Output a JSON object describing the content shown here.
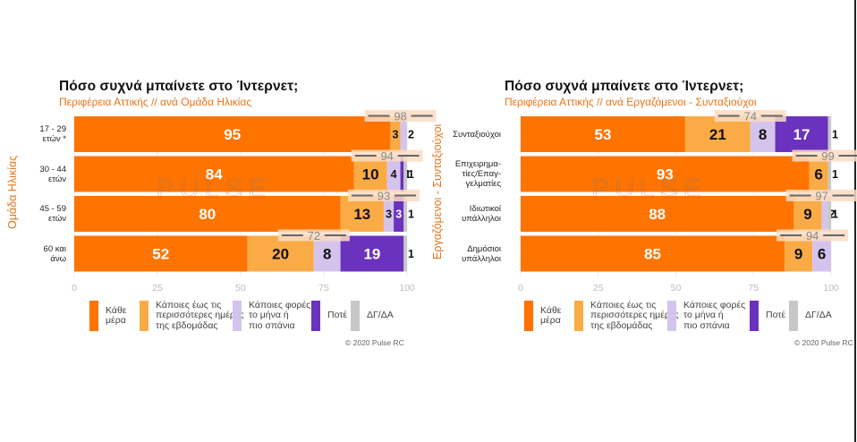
{
  "colors": {
    "every_day": "#ff7300",
    "most_days": "#fbab46",
    "monthly_or_rarer": "#d4c4ed",
    "never": "#6b32be",
    "dk_na": "#c8c8c8",
    "accent_text": "#e8731a"
  },
  "chart_data": [
    {
      "type": "bar",
      "orientation": "horizontal",
      "stacked": true,
      "title": "Πόσο συχνά μπαίνετε στο Ίντερνετ;",
      "subtitle": "Περιφέρεια Αττικής // ανά Ομάδα Ηλικίας",
      "xlabel": "",
      "ylabel": "Ομάδα Ηλικίας",
      "xlim": [
        0,
        100
      ],
      "xticks": [
        "0",
        "25",
        "50",
        "75",
        "100"
      ],
      "categories": [
        "17 - 29 ετών *",
        "30 - 44 ετών",
        "45 - 59 ετών",
        "60 και άνω"
      ],
      "series": [
        {
          "name": "Κάθε μέρα",
          "values": [
            95,
            84,
            80,
            52
          ]
        },
        {
          "name": "Κάποιες έως τις περισσότερες ημέρες της εβδομάδας",
          "values": [
            3,
            10,
            13,
            20
          ]
        },
        {
          "name": "Κάποιες φορές το μήνα ή πιο σπάνια",
          "values": [
            2,
            4,
            3,
            8
          ]
        },
        {
          "name": "Ποτέ",
          "values": [
            0,
            1,
            3,
            19
          ]
        },
        {
          "name": "ΔΓ/ΔΑ",
          "values": [
            0,
            1,
            1,
            1
          ]
        }
      ],
      "summary_labels": [
        98,
        94,
        93,
        72
      ],
      "summary_note": "sum of first two series",
      "legend_position": "bottom",
      "copyright": "© 2020 Pulse RC",
      "watermark": "PULSE"
    },
    {
      "type": "bar",
      "orientation": "horizontal",
      "stacked": true,
      "title": "Πόσο συχνά μπαίνετε στο Ίντερνετ;",
      "subtitle": "Περιφέρεια Αττικής // ανά Εργαζόμενοι - Συνταξιούχοι",
      "xlabel": "",
      "ylabel": "Εργαζόμενοι - Συνταξιούχοι",
      "xlim": [
        0,
        100
      ],
      "xticks": [
        "0",
        "25",
        "50",
        "75",
        "100"
      ],
      "categories": [
        "Συνταξιούχοι",
        "Επιχειρημα-τίες/Επαγ-γελματίες",
        "Ιδιωτικοί υπάλληλοι",
        "Δημόσιοι υπάλληλοι"
      ],
      "series": [
        {
          "name": "Κάθε μέρα",
          "values": [
            53,
            93,
            88,
            85
          ]
        },
        {
          "name": "Κάποιες έως τις περισσότερες ημέρες της εβδομάδας",
          "values": [
            21,
            6,
            9,
            9
          ]
        },
        {
          "name": "Κάποιες φορές το μήνα ή πιο σπάνια",
          "values": [
            8,
            0,
            2,
            6
          ]
        },
        {
          "name": "Ποτέ",
          "values": [
            17,
            0,
            0,
            0
          ]
        },
        {
          "name": "ΔΓ/ΔΑ",
          "values": [
            1,
            1,
            1,
            0
          ]
        }
      ],
      "summary_labels": [
        74,
        99,
        97,
        94
      ],
      "summary_note": "sum of first two series",
      "legend_position": "bottom",
      "copyright": "© 2020 Pulse RC",
      "watermark": "PULSE"
    }
  ],
  "left": {
    "title": "Πόσο συχνά μπαίνετε στο Ίντερνετ;",
    "subtitle": "Περιφέρεια Αττικής // ανά Ομάδα Ηλικίας",
    "ylabel": "Ομάδα Ηλικίας",
    "cat_lines": [
      [
        "17 - 29",
        "ετών *"
      ],
      [
        "30 - 44",
        "ετών"
      ],
      [
        "45 - 59",
        "ετών"
      ],
      [
        "60 και",
        "άνω"
      ]
    ],
    "copyright": "© 2020 Pulse RC"
  },
  "right": {
    "title": "Πόσο συχνά μπαίνετε στο Ίντερνετ;",
    "subtitle": "Περιφέρεια Αττικής // ανά Εργαζόμενοι - Συνταξιούχοι",
    "ylabel": "Εργαζόμενοι - Συνταξιούχοι",
    "cat_lines": [
      [
        "Συνταξιούχοι"
      ],
      [
        "Επιχειρημα-",
        "τίες/Επαγ-",
        "γελματίες"
      ],
      [
        "Ιδιωτικοί",
        "υπάλληλοι"
      ],
      [
        "Δημόσιοι",
        "υπάλληλοι"
      ]
    ],
    "copyright": "© 2020 Pulse RC"
  },
  "legend": [
    {
      "key": "every_day",
      "lines": [
        "Κάθε",
        "μέρα"
      ]
    },
    {
      "key": "most_days",
      "lines": [
        "Κάποιες έως τις",
        "περισσότερες ημέρες",
        "της εβδομάδας"
      ]
    },
    {
      "key": "monthly_or_rarer",
      "lines": [
        "Κάποιες φορές",
        "το μήνα ή",
        "πιο σπάνια"
      ]
    },
    {
      "key": "never",
      "lines": [
        "Ποτέ"
      ]
    },
    {
      "key": "dk_na",
      "lines": [
        "ΔΓ/ΔΑ"
      ]
    }
  ]
}
